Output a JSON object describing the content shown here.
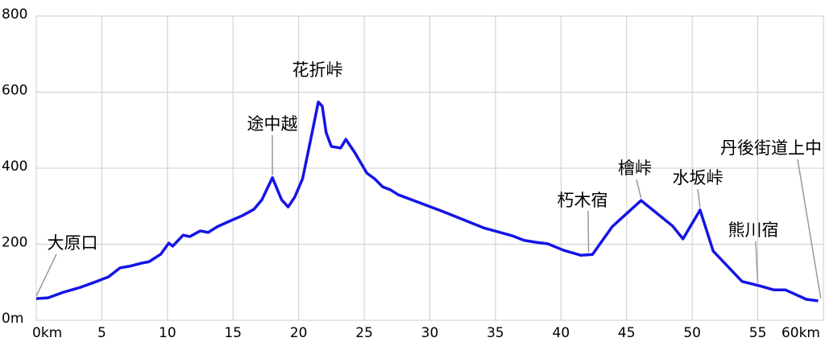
{
  "chart_data": {
    "type": "line",
    "x": [
      0,
      0.9,
      2.1,
      3.4,
      4.6,
      5.5,
      6.4,
      7.1,
      8.0,
      8.6,
      9.5,
      10.1,
      10.4,
      11.2,
      11.7,
      12.5,
      13.1,
      13.8,
      14.7,
      15.7,
      16.6,
      17.2,
      18.0,
      18.7,
      19.2,
      19.7,
      20.3,
      20.9,
      21.5,
      21.8,
      22.1,
      22.5,
      23.2,
      23.6,
      24.3,
      25.2,
      25.8,
      26.4,
      27.0,
      27.6,
      31.0,
      34.1,
      36.3,
      37.2,
      38.1,
      39.0,
      40.2,
      41.5,
      42.4,
      43.9,
      46.1,
      48.5,
      49.3,
      50.6,
      51.6,
      53.8,
      54.4,
      55.3,
      56.2,
      57.1,
      58.7,
      59.6
    ],
    "series": [
      {
        "color": "#1414e6",
        "values": [
          57,
          59,
          74,
          87,
          102,
          114,
          138,
          142,
          150,
          154,
          174,
          203,
          195,
          224,
          220,
          235,
          231,
          246,
          260,
          275,
          292,
          317,
          375,
          317,
          298,
          324,
          372,
          472,
          574,
          563,
          493,
          457,
          453,
          476,
          440,
          387,
          372,
          351,
          343,
          330,
          286,
          243,
          222,
          210,
          205,
          201,
          184,
          171,
          173,
          246,
          315,
          248,
          214,
          290,
          182,
          102,
          97,
          89,
          80,
          80,
          55,
          51
        ]
      }
    ],
    "xlim": [
      0,
      60
    ],
    "ylim": [
      0,
      800
    ],
    "xticks": [
      {
        "value": 0,
        "label": "0km"
      },
      5,
      10,
      15,
      20,
      25,
      30,
      35,
      40,
      45,
      50,
      55,
      {
        "value": 60,
        "label": "60km"
      }
    ],
    "yticks": [
      {
        "value": 0,
        "label": "0m"
      },
      200,
      400,
      600,
      800
    ],
    "grid": true,
    "annotations": [
      {
        "label": "大原口",
        "x": 0
      },
      {
        "label": "途中越",
        "x": 18.0
      },
      {
        "label": "花折峠",
        "x": 21.5
      },
      {
        "label": "朽木宿",
        "x": 42.1
      },
      {
        "label": "檜峠",
        "x": 46.1
      },
      {
        "label": "水坂峠",
        "x": 50.6
      },
      {
        "label": "熊川宿",
        "x": 55.0
      },
      {
        "label": "丹後街道上中",
        "x": 59.8
      }
    ]
  }
}
